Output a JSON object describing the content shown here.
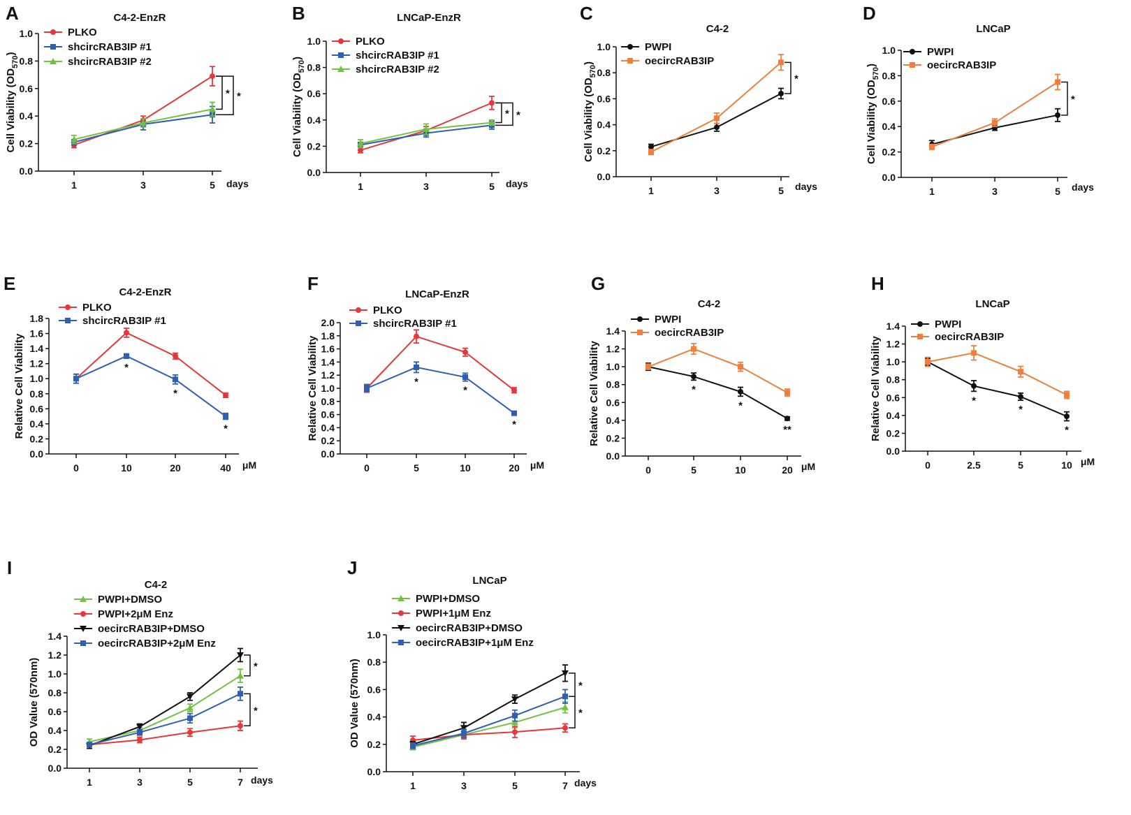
{
  "colors": {
    "red": "#e8373a",
    "blue": "#2f5fb3",
    "green": "#74c043",
    "black": "#111111",
    "orange": "#f07f3c"
  },
  "chart_data": [
    {
      "id": "A",
      "panel_label": "A",
      "type": "line",
      "title": "C4-2-EnzR",
      "ylabel": "Cell Viability (OD",
      "ylabel_sub": "570",
      "ylabel_close": ")",
      "x_unit": "days",
      "categories": [
        "1",
        "3",
        "5"
      ],
      "ylim": [
        0,
        1.0
      ],
      "yticks": [
        "0.0",
        "0.2",
        "0.4",
        "0.6",
        "0.8",
        "1.0"
      ],
      "series": [
        {
          "name": "PLKO",
          "color": "red",
          "marker": "circle",
          "values": [
            0.19,
            0.37,
            0.69
          ],
          "errors": [
            0.02,
            0.03,
            0.07
          ]
        },
        {
          "name": "shcircRAB3IP #1",
          "color": "blue",
          "marker": "square",
          "values": [
            0.21,
            0.34,
            0.41
          ],
          "errors": [
            0.02,
            0.04,
            0.06
          ]
        },
        {
          "name": "shcircRAB3IP #2",
          "color": "green",
          "marker": "triangle",
          "values": [
            0.23,
            0.35,
            0.45
          ],
          "errors": [
            0.03,
            0.03,
            0.05
          ]
        }
      ],
      "significance": [
        {
          "from_series": 0,
          "to_series": 2,
          "at_index": 2,
          "label": "*",
          "offset": 0
        },
        {
          "from_series": 0,
          "to_series": 1,
          "at_index": 2,
          "label": "*",
          "offset": 1
        }
      ]
    },
    {
      "id": "B",
      "panel_label": "B",
      "type": "line",
      "title": "LNCaP-EnzR",
      "ylabel": "Cell Viability (OD",
      "ylabel_sub": "570",
      "ylabel_close": ")",
      "x_unit": "days",
      "categories": [
        "1",
        "3",
        "5"
      ],
      "ylim": [
        0,
        1.0
      ],
      "yticks": [
        "0.0",
        "0.2",
        "0.4",
        "0.6",
        "0.8",
        "1.0"
      ],
      "series": [
        {
          "name": "PLKO",
          "color": "red",
          "marker": "circle",
          "values": [
            0.17,
            0.32,
            0.53
          ],
          "errors": [
            0.02,
            0.03,
            0.05
          ]
        },
        {
          "name": "shcircRAB3IP #1",
          "color": "blue",
          "marker": "square",
          "values": [
            0.21,
            0.3,
            0.36
          ],
          "errors": [
            0.02,
            0.03,
            0.03
          ]
        },
        {
          "name": "shcircRAB3IP #2",
          "color": "green",
          "marker": "triangle",
          "values": [
            0.22,
            0.33,
            0.38
          ],
          "errors": [
            0.03,
            0.04,
            0.02
          ]
        }
      ],
      "significance": [
        {
          "from_series": 0,
          "to_series": 2,
          "at_index": 2,
          "label": "*",
          "offset": 0
        },
        {
          "from_series": 0,
          "to_series": 1,
          "at_index": 2,
          "label": "*",
          "offset": 1
        }
      ]
    },
    {
      "id": "C",
      "panel_label": "C",
      "type": "line",
      "title": "C4-2",
      "ylabel": "Cell Viability (OD",
      "ylabel_sub": "570",
      "ylabel_close": ")",
      "x_unit": "days",
      "categories": [
        "1",
        "3",
        "5"
      ],
      "ylim": [
        0,
        1.0
      ],
      "yticks": [
        "0.0",
        "0.2",
        "0.4",
        "0.6",
        "0.8",
        "1.0"
      ],
      "series": [
        {
          "name": "PWPI",
          "color": "black",
          "marker": "circle",
          "values": [
            0.23,
            0.38,
            0.64
          ],
          "errors": [
            0.02,
            0.03,
            0.04
          ]
        },
        {
          "name": "oecircRAB3IP",
          "color": "orange",
          "marker": "square",
          "values": [
            0.19,
            0.45,
            0.88
          ],
          "errors": [
            0.02,
            0.04,
            0.06
          ]
        }
      ],
      "significance": [
        {
          "from_series": 1,
          "to_series": 0,
          "at_index": 2,
          "label": "*",
          "offset": 0
        }
      ]
    },
    {
      "id": "D",
      "panel_label": "D",
      "type": "line",
      "title": "LNCaP",
      "ylabel": "Cell Viability (OD",
      "ylabel_sub": "570",
      "ylabel_close": ")",
      "x_unit": "days",
      "categories": [
        "1",
        "3",
        "5"
      ],
      "ylim": [
        0,
        1.0
      ],
      "yticks": [
        "0.0",
        "0.2",
        "0.4",
        "0.6",
        "0.8",
        "1.0"
      ],
      "series": [
        {
          "name": "PWPI",
          "color": "black",
          "marker": "circle",
          "values": [
            0.26,
            0.39,
            0.49
          ],
          "errors": [
            0.03,
            0.02,
            0.05
          ]
        },
        {
          "name": "oecircRAB3IP",
          "color": "orange",
          "marker": "square",
          "values": [
            0.24,
            0.43,
            0.75
          ],
          "errors": [
            0.02,
            0.03,
            0.06
          ]
        }
      ],
      "significance": [
        {
          "from_series": 1,
          "to_series": 0,
          "at_index": 2,
          "label": "*",
          "offset": 0
        }
      ]
    },
    {
      "id": "E",
      "panel_label": "E",
      "type": "line",
      "title": "C4-2-EnzR",
      "ylabel": "Relative Cell Viability",
      "x_unit": "μM",
      "categories": [
        "0",
        "10",
        "20",
        "40"
      ],
      "ylim": [
        0,
        1.8
      ],
      "yticks": [
        "0.0",
        "0.2",
        "0.4",
        "0.6",
        "0.8",
        "1.0",
        "1.2",
        "1.4",
        "1.6",
        "1.8"
      ],
      "series": [
        {
          "name": "PLKO",
          "color": "red",
          "marker": "circle",
          "values": [
            1.0,
            1.61,
            1.3,
            0.78
          ],
          "errors": [
            0.06,
            0.06,
            0.04,
            0.03
          ]
        },
        {
          "name": "shcircRAB3IP #1",
          "color": "blue",
          "marker": "square",
          "values": [
            1.0,
            1.3,
            0.99,
            0.5
          ],
          "errors": [
            0.06,
            0.03,
            0.06,
            0.04
          ]
        }
      ],
      "point_stars": [
        {
          "series": 1,
          "index": 1,
          "label": "*"
        },
        {
          "series": 1,
          "index": 2,
          "label": "*"
        },
        {
          "series": 1,
          "index": 3,
          "label": "*"
        }
      ]
    },
    {
      "id": "F",
      "panel_label": "F",
      "type": "line",
      "title": "LNCaP-EnzR",
      "ylabel": "Relative Cell Viability",
      "x_unit": "μM",
      "categories": [
        "0",
        "5",
        "10",
        "20"
      ],
      "ylim": [
        0,
        2.0
      ],
      "yticks": [
        "0.0",
        "0.2",
        "0.4",
        "0.6",
        "0.8",
        "1.0",
        "1.2",
        "1.4",
        "1.6",
        "1.8",
        "2.0"
      ],
      "series": [
        {
          "name": "PLKO",
          "color": "red",
          "marker": "circle",
          "values": [
            1.0,
            1.79,
            1.55,
            0.97
          ],
          "errors": [
            0.06,
            0.1,
            0.06,
            0.04
          ]
        },
        {
          "name": "shcircRAB3IP #1",
          "color": "blue",
          "marker": "square",
          "values": [
            1.0,
            1.32,
            1.17,
            0.62
          ],
          "errors": [
            0.05,
            0.08,
            0.06,
            0.03
          ]
        }
      ],
      "point_stars": [
        {
          "series": 1,
          "index": 1,
          "label": "*"
        },
        {
          "series": 1,
          "index": 2,
          "label": "*"
        },
        {
          "series": 1,
          "index": 3,
          "label": "*"
        }
      ]
    },
    {
      "id": "G",
      "panel_label": "G",
      "type": "line",
      "title": "C4-2",
      "ylabel": "Relative Cell Viability",
      "x_unit": "μM",
      "categories": [
        "0",
        "5",
        "10",
        "20"
      ],
      "ylim": [
        0,
        1.4
      ],
      "yticks": [
        "0.0",
        "0.2",
        "0.4",
        "0.6",
        "0.8",
        "1.0",
        "1.2",
        "1.4"
      ],
      "series": [
        {
          "name": "PWPI",
          "color": "black",
          "marker": "circle",
          "values": [
            1.0,
            0.89,
            0.72,
            0.42
          ],
          "errors": [
            0.04,
            0.04,
            0.05,
            0.02
          ]
        },
        {
          "name": "oecircRAB3IP",
          "color": "orange",
          "marker": "square",
          "values": [
            1.0,
            1.2,
            1.0,
            0.71
          ],
          "errors": [
            0.03,
            0.06,
            0.05,
            0.04
          ]
        }
      ],
      "point_stars": [
        {
          "series": 0,
          "index": 1,
          "label": "*"
        },
        {
          "series": 0,
          "index": 2,
          "label": "*"
        },
        {
          "series": 0,
          "index": 3,
          "label": "**"
        }
      ]
    },
    {
      "id": "H",
      "panel_label": "H",
      "type": "line",
      "title": "LNCaP",
      "ylabel": "Relative Cell Viability",
      "x_unit": "μM",
      "categories": [
        "0",
        "2.5",
        "5",
        "10"
      ],
      "ylim": [
        0,
        1.4
      ],
      "yticks": [
        "0.0",
        "0.2",
        "0.4",
        "0.6",
        "0.8",
        "1.0",
        "1.2",
        "1.4"
      ],
      "series": [
        {
          "name": "PWPI",
          "color": "black",
          "marker": "circle",
          "values": [
            1.0,
            0.73,
            0.61,
            0.39
          ],
          "errors": [
            0.04,
            0.06,
            0.04,
            0.05
          ]
        },
        {
          "name": "oecircRAB3IP",
          "color": "orange",
          "marker": "square",
          "values": [
            1.0,
            1.1,
            0.89,
            0.63
          ],
          "errors": [
            0.05,
            0.08,
            0.06,
            0.04
          ]
        }
      ],
      "point_stars": [
        {
          "series": 0,
          "index": 1,
          "label": "*"
        },
        {
          "series": 0,
          "index": 2,
          "label": "*"
        },
        {
          "series": 0,
          "index": 3,
          "label": "*"
        }
      ]
    },
    {
      "id": "I",
      "panel_label": "I",
      "type": "line",
      "title": "C4-2",
      "ylabel": "OD Value (570nm)",
      "x_unit": "days",
      "categories": [
        "1",
        "3",
        "5",
        "7"
      ],
      "ylim": [
        0,
        1.4
      ],
      "yticks": [
        "0.0",
        "0.2",
        "0.4",
        "0.6",
        "0.8",
        "1.0",
        "1.2",
        "1.4"
      ],
      "series": [
        {
          "name": "PWPI+DMSO",
          "color": "green",
          "marker": "triangle",
          "values": [
            0.28,
            0.4,
            0.64,
            0.98
          ],
          "errors": [
            0.03,
            0.03,
            0.04,
            0.07
          ]
        },
        {
          "name": "PWPI+2μM Enz",
          "color": "red",
          "marker": "circle",
          "values": [
            0.25,
            0.3,
            0.38,
            0.45
          ],
          "errors": [
            0.02,
            0.03,
            0.04,
            0.05
          ]
        },
        {
          "name": "oecircRAB3IP+DMSO",
          "color": "black",
          "marker": "triangle-down",
          "values": [
            0.24,
            0.44,
            0.76,
            1.2
          ],
          "errors": [
            0.03,
            0.03,
            0.04,
            0.07
          ]
        },
        {
          "name": "oecircRAB3IP+2μM Enz",
          "color": "blue",
          "marker": "square",
          "values": [
            0.25,
            0.38,
            0.53,
            0.79
          ],
          "errors": [
            0.02,
            0.03,
            0.05,
            0.07
          ]
        }
      ],
      "significance": [
        {
          "from_series": 2,
          "to_series": 0,
          "at_index": 3,
          "label": "*",
          "offset": 0
        },
        {
          "from_series": 3,
          "to_series": 1,
          "at_index": 3,
          "label": "*",
          "offset": 0
        }
      ]
    },
    {
      "id": "J",
      "panel_label": "J",
      "type": "line",
      "title": "LNCaP",
      "ylabel": "OD Value (570nm)",
      "x_unit": "days",
      "categories": [
        "1",
        "3",
        "5",
        "7"
      ],
      "ylim": [
        0,
        1.0
      ],
      "yticks": [
        "0.0",
        "0.2",
        "0.4",
        "0.6",
        "0.8",
        "1.0"
      ],
      "series": [
        {
          "name": "PWPI+DMSO",
          "color": "green",
          "marker": "triangle",
          "values": [
            0.18,
            0.27,
            0.36,
            0.47
          ],
          "errors": [
            0.02,
            0.03,
            0.04,
            0.04
          ]
        },
        {
          "name": "PWPI+1μM Enz",
          "color": "red",
          "marker": "circle",
          "values": [
            0.23,
            0.27,
            0.29,
            0.32
          ],
          "errors": [
            0.03,
            0.03,
            0.04,
            0.03
          ]
        },
        {
          "name": "oecircRAB3IP+DMSO",
          "color": "black",
          "marker": "triangle-down",
          "values": [
            0.2,
            0.32,
            0.53,
            0.72
          ],
          "errors": [
            0.02,
            0.04,
            0.03,
            0.06
          ]
        },
        {
          "name": "oecircRAB3IP+1μM Enz",
          "color": "blue",
          "marker": "square",
          "values": [
            0.19,
            0.28,
            0.41,
            0.55
          ],
          "errors": [
            0.02,
            0.03,
            0.04,
            0.05
          ]
        }
      ],
      "significance": [
        {
          "from_series": 2,
          "to_series": 3,
          "at_index": 3,
          "label": "*",
          "offset": 0
        },
        {
          "from_series": 3,
          "to_series": 1,
          "at_index": 3,
          "label": "*",
          "offset": 0
        }
      ]
    }
  ]
}
